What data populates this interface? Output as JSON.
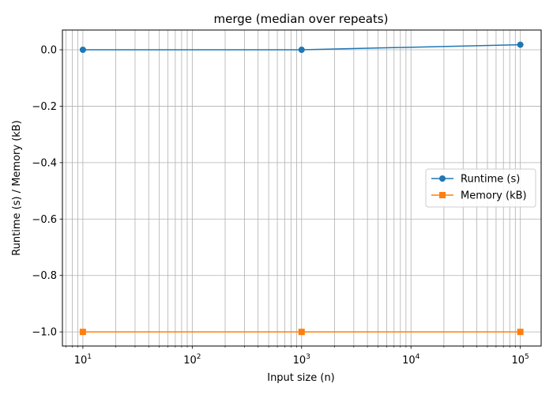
{
  "chart_data": {
    "type": "line",
    "title": "merge (median over repeats)",
    "xlabel": "Input size (n)",
    "ylabel": "Runtime (s) / Memory (kB)",
    "x_scale": "log",
    "x": [
      10,
      1000,
      100000
    ],
    "xlim": [
      6.5,
      155000
    ],
    "ylim": [
      -1.05,
      0.07
    ],
    "y_ticks": [
      0.0,
      -0.2,
      -0.4,
      -0.6,
      -0.8,
      -1.0
    ],
    "y_tick_labels": [
      "0.0",
      "−0.2",
      "−0.4",
      "−0.6",
      "−0.8",
      "−1.0"
    ],
    "x_ticks": [
      {
        "base": "10",
        "exp": "1",
        "value": 10
      },
      {
        "base": "10",
        "exp": "2",
        "value": 100
      },
      {
        "base": "10",
        "exp": "3",
        "value": 1000
      },
      {
        "base": "10",
        "exp": "4",
        "value": 10000
      },
      {
        "base": "10",
        "exp": "5",
        "value": 100000
      }
    ],
    "grid": "both-major-minor",
    "legend_position": "center-right",
    "series": [
      {
        "name": "Runtime (s)",
        "marker": "circle",
        "color": "#1f77b4",
        "values": [
          0.0,
          0.0,
          0.018
        ]
      },
      {
        "name": "Memory (kB)",
        "marker": "square",
        "color": "#ff7f0e",
        "values": [
          -1.0,
          -1.0,
          -1.0
        ]
      }
    ]
  }
}
